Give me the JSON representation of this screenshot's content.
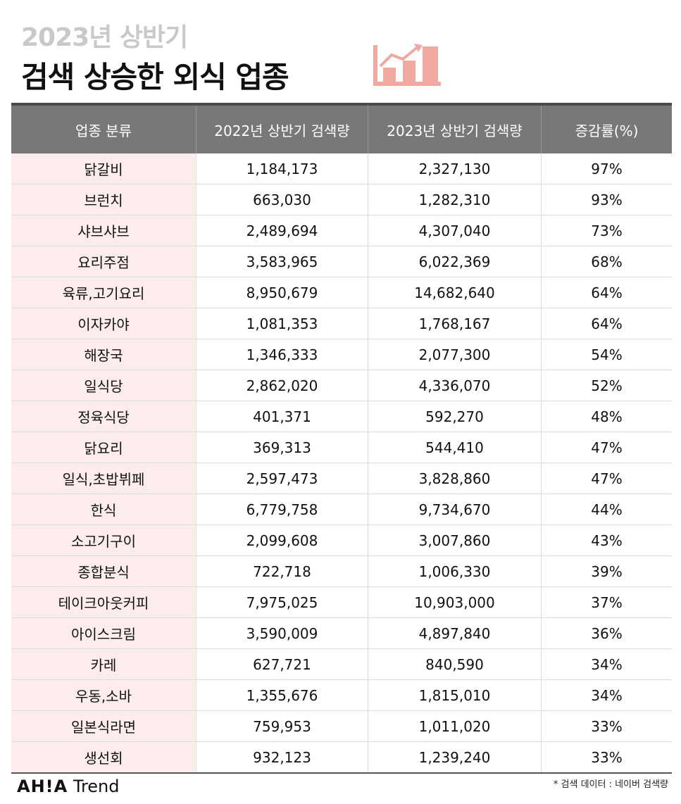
{
  "header": {
    "subtitle": "2023년 상반기",
    "title": "검색 상승한 외식 업종"
  },
  "table": {
    "columns": [
      "업종 분류",
      "2022년 상반기 검색량",
      "2023년 상반기 검색량",
      "증감률(%)"
    ],
    "rows": [
      [
        "닭갈비",
        "1,184,173",
        "2,327,130",
        "97%"
      ],
      [
        "브런치",
        "663,030",
        "1,282,310",
        "93%"
      ],
      [
        "샤브샤브",
        "2,489,694",
        "4,307,040",
        "73%"
      ],
      [
        "요리주점",
        "3,583,965",
        "6,022,369",
        "68%"
      ],
      [
        "육류,고기요리",
        "8,950,679",
        "14,682,640",
        "64%"
      ],
      [
        "이자카야",
        "1,081,353",
        "1,768,167",
        "64%"
      ],
      [
        "해장국",
        "1,346,333",
        "2,077,300",
        "54%"
      ],
      [
        "일식당",
        "2,862,020",
        "4,336,070",
        "52%"
      ],
      [
        "정육식당",
        "401,371",
        "592,270",
        "48%"
      ],
      [
        "닭요리",
        "369,313",
        "544,410",
        "47%"
      ],
      [
        "일식,초밥뷔페",
        "2,597,473",
        "3,828,860",
        "47%"
      ],
      [
        "한식",
        "6,779,758",
        "9,734,670",
        "44%"
      ],
      [
        "소고기구이",
        "2,099,608",
        "3,007,860",
        "43%"
      ],
      [
        "종합분식",
        "722,718",
        "1,006,330",
        "39%"
      ],
      [
        "테이크아웃커피",
        "7,975,025",
        "10,903,000",
        "37%"
      ],
      [
        "아이스크림",
        "3,590,009",
        "4,897,840",
        "36%"
      ],
      [
        "카레",
        "627,721",
        "840,590",
        "34%"
      ],
      [
        "우동,소바",
        "1,355,676",
        "1,815,010",
        "34%"
      ],
      [
        "일본식라면",
        "759,953",
        "1,011,020",
        "33%"
      ],
      [
        "생선회",
        "932,123",
        "1,239,240",
        "33%"
      ]
    ]
  },
  "footer": {
    "brand_bold": "AH!A",
    "brand_rest": " Trend",
    "note": "* 검색 데이터 : 네이버 검색량"
  },
  "colors": {
    "header_bg": "#787878",
    "category_bg": "#fcecec",
    "icon_color": "#f0a8a0",
    "subtitle_color": "#c9c9c9"
  },
  "icons": [
    "bar-chart-rising-icon"
  ]
}
